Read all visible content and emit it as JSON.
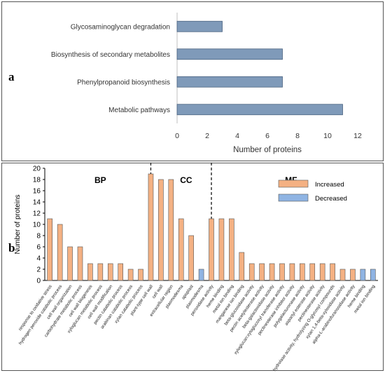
{
  "figure": {
    "panel_a_label": "a",
    "panel_b_label": "b"
  },
  "chart_data": [
    {
      "type": "bar",
      "orientation": "horizontal",
      "categories": [
        "Glycosaminoglycan degradation",
        "Biosynthesis of secondary metabolites",
        "Phenylpropanoid biosynthesis",
        "Metabolic pathways"
      ],
      "values": [
        3,
        7,
        7,
        11
      ],
      "xlabel": "Number of proteins",
      "ylabel": "",
      "xlim": [
        0,
        12
      ],
      "xticks": [
        "0",
        "2",
        "4",
        "6",
        "8",
        "10",
        "12"
      ],
      "grid": false,
      "colors": {
        "bar": "#7f9ab9",
        "bar_edge": "#4a6280"
      }
    },
    {
      "type": "bar",
      "ylabel": "Number of proteins",
      "ylim": [
        0,
        20
      ],
      "yticks": [
        "0",
        "2",
        "4",
        "6",
        "8",
        "10",
        "12",
        "14",
        "16",
        "18",
        "20"
      ],
      "grid": false,
      "legend_position": "top-right",
      "groups": [
        {
          "label": "BP",
          "start": 0,
          "end": 10
        },
        {
          "label": "CC",
          "start": 11,
          "end": 16
        },
        {
          "label": "MF",
          "start": 17,
          "end": 33
        }
      ],
      "categories": [
        "response to oxidative stress",
        "hydrogen peroxide catabolic process",
        "cell wall organization",
        "carbohydrate metabolic process",
        "cell wall biogenesis",
        "xyloglucan metabolic process",
        "cell wall modification",
        "pectin catabolic process",
        "arabinan catabolic process",
        "xylan catabolic process",
        "plant-type cell wall",
        "cell wall",
        "extracellular region",
        "plasmodesma",
        "apoplast",
        "plasmodesma",
        "peroxidase activity",
        "heme binding",
        "metal ion binding",
        "manganese ion binding",
        "beta-glucosidase activity",
        "pectin acetylesterase activity",
        "beta-galactosidase activity",
        "xyloglucan:xyloglucosyl transferase activity",
        "pectinesterase inhibitor activity",
        "polygalacturonase activity",
        "aspartyl esterase activity",
        "pectinesterase activity",
        "hydrolase activity, hydrolyzing O-glycosyl compounds",
        "xylan 1,4-beta-xylosidase activity",
        "alpha-L-arabinofuranosidase activity",
        "heme binding",
        "metal ion binding"
      ],
      "series": [
        {
          "name": "Increased",
          "color": "#f4b183",
          "values": [
            11,
            10,
            6,
            6,
            3,
            3,
            3,
            3,
            2,
            2,
            19,
            18,
            18,
            11,
            8,
            0,
            11,
            11,
            11,
            5,
            3,
            3,
            3,
            3,
            3,
            3,
            3,
            3,
            3,
            2,
            2,
            0,
            0
          ]
        },
        {
          "name": "Decreased",
          "color": "#8fb4e3",
          "values": [
            0,
            0,
            0,
            0,
            0,
            0,
            0,
            0,
            0,
            0,
            0,
            0,
            0,
            0,
            0,
            2,
            0,
            0,
            0,
            0,
            0,
            0,
            0,
            0,
            0,
            0,
            0,
            0,
            0,
            0,
            0,
            2,
            2
          ]
        }
      ]
    }
  ]
}
